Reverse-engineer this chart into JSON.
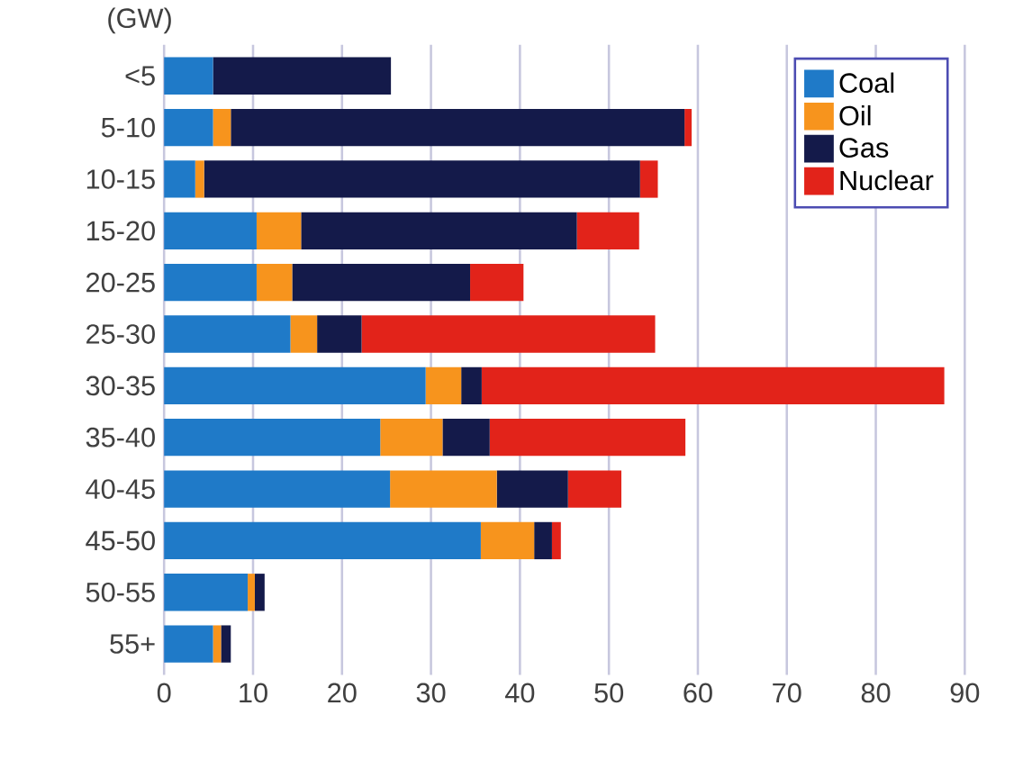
{
  "chart_data": {
    "type": "bar",
    "orientation": "horizontal",
    "stacked": true,
    "ylabel": "(GW)",
    "categories": [
      "<5",
      "5-10",
      "10-15",
      "15-20",
      "20-25",
      "25-30",
      "30-35",
      "35-40",
      "40-45",
      "45-50",
      "50-55",
      "55+"
    ],
    "series": [
      {
        "name": "Coal",
        "color": "#1f7ac8",
        "values": [
          5.5,
          5.5,
          3.5,
          10.4,
          10.4,
          14.2,
          29.4,
          24.3,
          25.4,
          35.6,
          9.4,
          5.5
        ]
      },
      {
        "name": "Oil",
        "color": "#f7941d",
        "values": [
          0,
          2,
          1,
          5,
          4,
          3,
          4,
          7,
          12,
          6,
          0.8,
          0.9
        ]
      },
      {
        "name": "Gas",
        "color": "#141a4a",
        "values": [
          20,
          51,
          49,
          31,
          20,
          5,
          2.3,
          5.3,
          8,
          2,
          1.1,
          1.1
        ]
      },
      {
        "name": "Nuclear",
        "color": "#e2231a",
        "values": [
          0,
          0.8,
          2,
          7,
          6,
          33,
          52,
          22,
          6,
          1,
          0,
          0
        ]
      }
    ],
    "xlim": [
      0,
      90
    ],
    "xticks": [
      0,
      10,
      20,
      30,
      40,
      50,
      60,
      70,
      80,
      90
    ],
    "grid": "x",
    "legend": "top right"
  }
}
